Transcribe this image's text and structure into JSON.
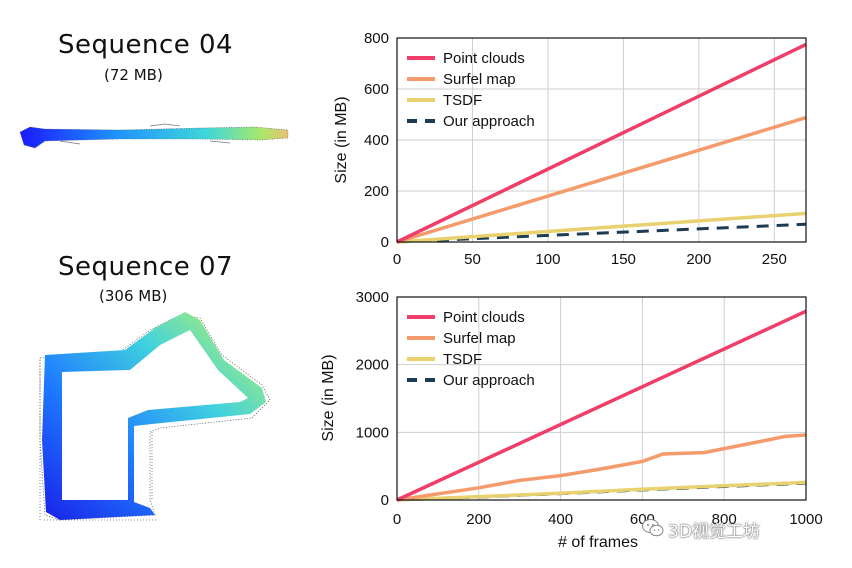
{
  "sequences": [
    {
      "title": "Sequence 04",
      "size": "(72 MB)"
    },
    {
      "title": "Sequence 07",
      "size": "(306 MB)"
    }
  ],
  "watermark": {
    "text": "3D视觉工坊",
    "icon": "wechat-icon"
  },
  "colors": {
    "point_clouds": "#ef3e6a",
    "surfel_map": "#f59a6a",
    "tsdf": "#e8d16e",
    "our_approach": "#1d3b52"
  },
  "chart_data": [
    {
      "type": "line",
      "title": "",
      "xlabel": "",
      "ylabel": "Size (in MB)",
      "xlim": [
        0,
        271
      ],
      "ylim": [
        0,
        800
      ],
      "xticks": [
        0,
        50,
        100,
        150,
        200,
        250
      ],
      "yticks": [
        0,
        200,
        400,
        600,
        800
      ],
      "grid": true,
      "legend_position": "top-left",
      "series": [
        {
          "name": "Point clouds",
          "key": "point_clouds",
          "style": "solid",
          "x": [
            0,
            271
          ],
          "y": [
            0,
            775
          ]
        },
        {
          "name": "Surfel map",
          "key": "surfel_map",
          "style": "solid",
          "x": [
            0,
            271
          ],
          "y": [
            0,
            488
          ]
        },
        {
          "name": "TSDF",
          "key": "tsdf",
          "style": "solid",
          "x": [
            0,
            271
          ],
          "y": [
            0,
            112
          ]
        },
        {
          "name": "Our approach",
          "key": "our_approach",
          "style": "dashed",
          "x": [
            0,
            271
          ],
          "y": [
            0,
            70
          ]
        }
      ]
    },
    {
      "type": "line",
      "title": "",
      "xlabel": "# of frames",
      "ylabel": "Size (in MB)",
      "xlim": [
        0,
        1000
      ],
      "ylim": [
        0,
        3000
      ],
      "xticks": [
        0,
        200,
        400,
        600,
        800,
        1000
      ],
      "yticks": [
        0,
        1000,
        2000,
        3000
      ],
      "grid": true,
      "legend_position": "top-left",
      "series": [
        {
          "name": "Point clouds",
          "key": "point_clouds",
          "style": "solid",
          "x": [
            0,
            1000
          ],
          "y": [
            0,
            2790
          ]
        },
        {
          "name": "Surfel map",
          "key": "surfel_map",
          "style": "solid",
          "x": [
            0,
            100,
            200,
            300,
            400,
            500,
            600,
            650,
            700,
            750,
            800,
            900,
            950,
            1000
          ],
          "y": [
            0,
            90,
            180,
            290,
            360,
            460,
            570,
            680,
            690,
            700,
            760,
            880,
            940,
            960
          ]
        },
        {
          "name": "TSDF",
          "key": "tsdf",
          "style": "solid",
          "x": [
            0,
            200,
            400,
            600,
            800,
            1000
          ],
          "y": [
            0,
            50,
            100,
            160,
            210,
            260
          ]
        },
        {
          "name": "Our approach",
          "key": "our_approach",
          "style": "dashed",
          "x": [
            0,
            200,
            400,
            600,
            800,
            1000
          ],
          "y": [
            0,
            45,
            95,
            150,
            200,
            250
          ]
        }
      ]
    }
  ]
}
